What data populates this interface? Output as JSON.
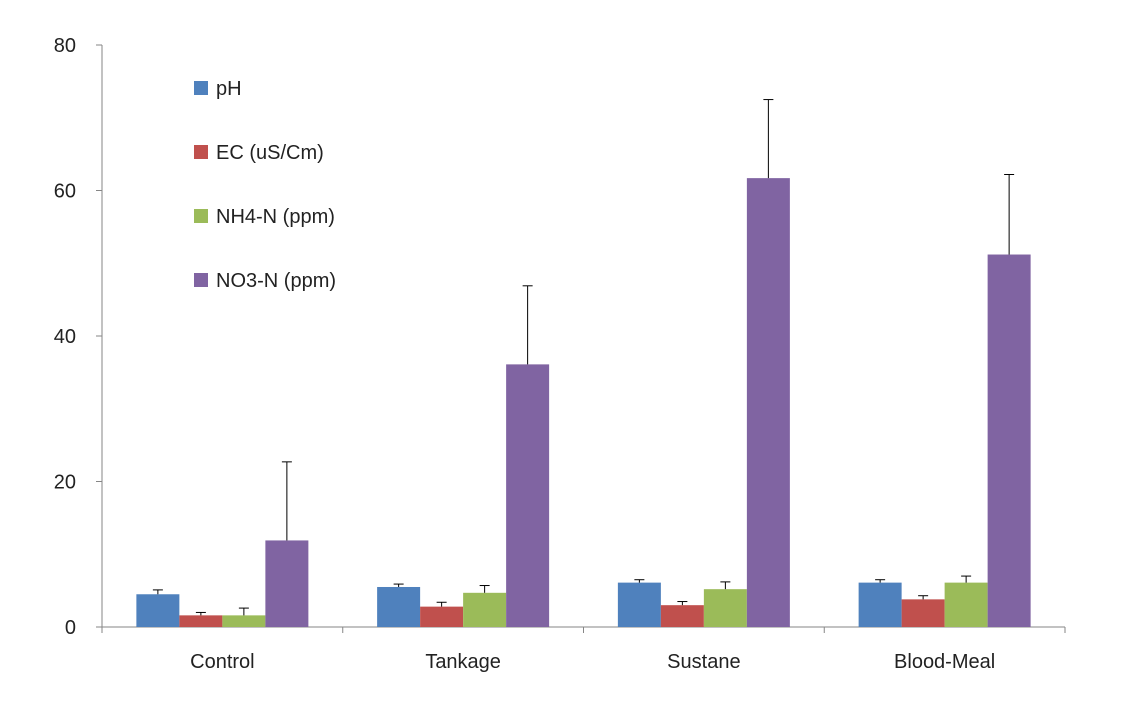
{
  "chart_data": {
    "type": "bar",
    "title": "",
    "xlabel": "",
    "ylabel": "",
    "categories": [
      "Control",
      "Tankage",
      "Sustane",
      "Blood-Meal"
    ],
    "ylim": [
      0,
      80
    ],
    "yticks": [
      "0",
      "20",
      "40",
      "60",
      "80"
    ],
    "grid": false,
    "legend_position": "top-left",
    "series": [
      {
        "name": "pH",
        "color": "#4F81BD",
        "values": [
          4.5,
          5.5,
          6.1,
          6.1
        ],
        "errors": [
          0.6,
          0.4,
          0.4,
          0.4
        ]
      },
      {
        "name": "EC (uS/Cm)",
        "color": "#C0504D",
        "values": [
          1.6,
          2.8,
          3.0,
          3.8
        ],
        "errors": [
          0.4,
          0.6,
          0.5,
          0.5
        ]
      },
      {
        "name": "NH4-N (ppm)",
        "color": "#9BBB59",
        "values": [
          1.6,
          4.7,
          5.2,
          6.1
        ],
        "errors": [
          1.0,
          1.0,
          1.0,
          0.9
        ]
      },
      {
        "name": "NO3-N (ppm)",
        "color": "#8064A2",
        "values": [
          11.9,
          36.1,
          61.7,
          51.2
        ],
        "errors": [
          10.8,
          10.8,
          10.8,
          11.0
        ]
      }
    ]
  }
}
